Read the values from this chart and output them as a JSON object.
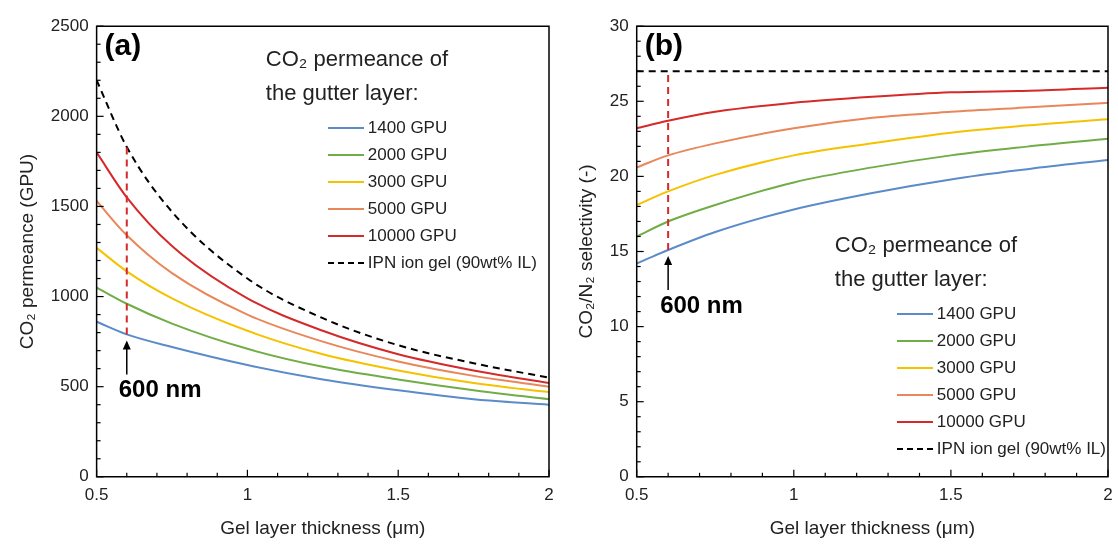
{
  "chart_data": [
    {
      "type": "line",
      "title": "(a)",
      "xlabel": "Gel layer thickness (μm)",
      "ylabel": "CO₂ permeance (GPU)",
      "legend_title": "CO₂ permeance of the gutter layer:",
      "legend": "top right",
      "grid": false,
      "x": [
        0.5,
        0.6,
        0.75,
        1,
        1.25,
        1.5,
        1.75,
        2
      ],
      "series": [
        {
          "name": "1400 GPU",
          "color": "#5b8bc9",
          "values": [
            860,
            790,
            720,
            620,
            540,
            480,
            430,
            400
          ]
        },
        {
          "name": "2000 GPU",
          "color": "#70ad47",
          "values": [
            1050,
            960,
            850,
            710,
            610,
            540,
            480,
            430
          ]
        },
        {
          "name": "3000 GPU",
          "color": "#f5c200",
          "values": [
            1270,
            1140,
            990,
            810,
            680,
            590,
            520,
            470
          ]
        },
        {
          "name": "5000 GPU",
          "color": "#e8875a",
          "values": [
            1530,
            1340,
            1130,
            900,
            750,
            640,
            560,
            500
          ]
        },
        {
          "name": "10000 GPU",
          "color": "#d42a2a",
          "values": [
            1800,
            1550,
            1280,
            990,
            810,
            680,
            590,
            520
          ]
        },
        {
          "name": "IPN ion gel (90wt% IL)",
          "color": "#000000",
          "line_style": "dashed",
          "values": [
            2200,
            1830,
            1470,
            1100,
            880,
            730,
            630,
            550
          ]
        }
      ],
      "xlim": [
        0.5,
        2
      ],
      "xticks": [
        0.5,
        {
          "value": 0.6,
          "label": null
        },
        {
          "value": 0.7,
          "label": null
        },
        {
          "value": 0.8,
          "label": null
        },
        {
          "value": 0.9,
          "label": null
        },
        1,
        {
          "value": 1.1,
          "label": null
        },
        {
          "value": 1.2,
          "label": null
        },
        {
          "value": 1.3,
          "label": null
        },
        {
          "value": 1.4,
          "label": null
        },
        1.5,
        {
          "value": 1.6,
          "label": null
        },
        {
          "value": 1.7,
          "label": null
        },
        {
          "value": 1.8,
          "label": null
        },
        {
          "value": 1.9,
          "label": null
        },
        2
      ],
      "ylim": [
        0,
        2500
      ],
      "yticks": [
        0,
        {
          "value": 100,
          "label": null
        },
        {
          "value": 200,
          "label": null
        },
        {
          "value": 300,
          "label": null
        },
        {
          "value": 400,
          "label": null
        },
        500,
        {
          "value": 600,
          "label": null
        },
        {
          "value": 700,
          "label": null
        },
        {
          "value": 800,
          "label": null
        },
        {
          "value": 900,
          "label": null
        },
        1000,
        {
          "value": 1100,
          "label": null
        },
        {
          "value": 1200,
          "label": null
        },
        {
          "value": 1300,
          "label": null
        },
        {
          "value": 1400,
          "label": null
        },
        1500,
        {
          "value": 1600,
          "label": null
        },
        {
          "value": 1700,
          "label": null
        },
        {
          "value": 1800,
          "label": null
        },
        {
          "value": 1900,
          "label": null
        },
        2000,
        {
          "value": 2100,
          "label": null
        },
        {
          "value": 2200,
          "label": null
        },
        {
          "value": 2300,
          "label": null
        },
        {
          "value": 2400,
          "label": null
        },
        2500
      ],
      "ref_lines": [
        {
          "axis": "x",
          "value": 0.6,
          "color": "#d42a2a",
          "line_style": "dashed"
        }
      ],
      "annotations": [
        {
          "text": "600 nm",
          "x": 0.6,
          "y": 790
        }
      ]
    },
    {
      "type": "line",
      "title": "(b)",
      "xlabel": "Gel layer thickness (μm)",
      "ylabel": "CO₂/N₂ selectivity (-)",
      "legend_title": "CO₂ permeance of the gutter layer:",
      "legend": "bottom right",
      "grid": false,
      "x": [
        0.5,
        0.6,
        0.75,
        1,
        1.25,
        1.5,
        1.75,
        2
      ],
      "series": [
        {
          "name": "1400 GPU",
          "color": "#5b8bc9",
          "values": [
            14.2,
            15.1,
            16.3,
            17.8,
            18.9,
            19.8,
            20.5,
            21.1
          ]
        },
        {
          "name": "2000 GPU",
          "color": "#70ad47",
          "values": [
            16.0,
            17.0,
            18.1,
            19.6,
            20.6,
            21.4,
            22.0,
            22.5
          ]
        },
        {
          "name": "3000 GPU",
          "color": "#f5c200",
          "values": [
            18.1,
            19.0,
            20.1,
            21.4,
            22.2,
            22.9,
            23.4,
            23.8
          ]
        },
        {
          "name": "5000 GPU",
          "color": "#e8875a",
          "values": [
            20.6,
            21.4,
            22.2,
            23.2,
            23.9,
            24.3,
            24.6,
            24.9
          ]
        },
        {
          "name": "10000 GPU",
          "color": "#d42a2a",
          "values": [
            23.2,
            23.7,
            24.3,
            24.9,
            25.3,
            25.6,
            25.7,
            25.9
          ]
        },
        {
          "name": "IPN ion gel (90wt% IL)",
          "color": "#000000",
          "line_style": "dashed",
          "values": [
            27,
            27,
            27,
            27,
            27,
            27,
            27,
            27
          ]
        }
      ],
      "xlim": [
        0.5,
        2
      ],
      "xticks": [
        0.5,
        {
          "value": 0.6,
          "label": null
        },
        {
          "value": 0.7,
          "label": null
        },
        {
          "value": 0.8,
          "label": null
        },
        {
          "value": 0.9,
          "label": null
        },
        1,
        {
          "value": 1.1,
          "label": null
        },
        {
          "value": 1.2,
          "label": null
        },
        {
          "value": 1.3,
          "label": null
        },
        {
          "value": 1.4,
          "label": null
        },
        1.5,
        {
          "value": 1.6,
          "label": null
        },
        {
          "value": 1.7,
          "label": null
        },
        {
          "value": 1.8,
          "label": null
        },
        {
          "value": 1.9,
          "label": null
        },
        2
      ],
      "ylim": [
        0,
        30
      ],
      "yticks": [
        0,
        {
          "value": 1,
          "label": null
        },
        {
          "value": 2,
          "label": null
        },
        {
          "value": 3,
          "label": null
        },
        {
          "value": 4,
          "label": null
        },
        5,
        {
          "value": 6,
          "label": null
        },
        {
          "value": 7,
          "label": null
        },
        {
          "value": 8,
          "label": null
        },
        {
          "value": 9,
          "label": null
        },
        10,
        {
          "value": 11,
          "label": null
        },
        {
          "value": 12,
          "label": null
        },
        {
          "value": 13,
          "label": null
        },
        {
          "value": 14,
          "label": null
        },
        15,
        {
          "value": 16,
          "label": null
        },
        {
          "value": 17,
          "label": null
        },
        {
          "value": 18,
          "label": null
        },
        {
          "value": 19,
          "label": null
        },
        20,
        {
          "value": 21,
          "label": null
        },
        {
          "value": 22,
          "label": null
        },
        {
          "value": 23,
          "label": null
        },
        {
          "value": 24,
          "label": null
        },
        25,
        {
          "value": 26,
          "label": null
        },
        {
          "value": 27,
          "label": null
        },
        {
          "value": 28,
          "label": null
        },
        {
          "value": 29,
          "label": null
        },
        30
      ],
      "ref_lines": [
        {
          "axis": "x",
          "value": 0.6,
          "color": "#d42a2a",
          "line_style": "dashed"
        }
      ],
      "annotations": [
        {
          "text": "600 nm",
          "x": 0.6,
          "y": 15.1
        }
      ]
    }
  ]
}
